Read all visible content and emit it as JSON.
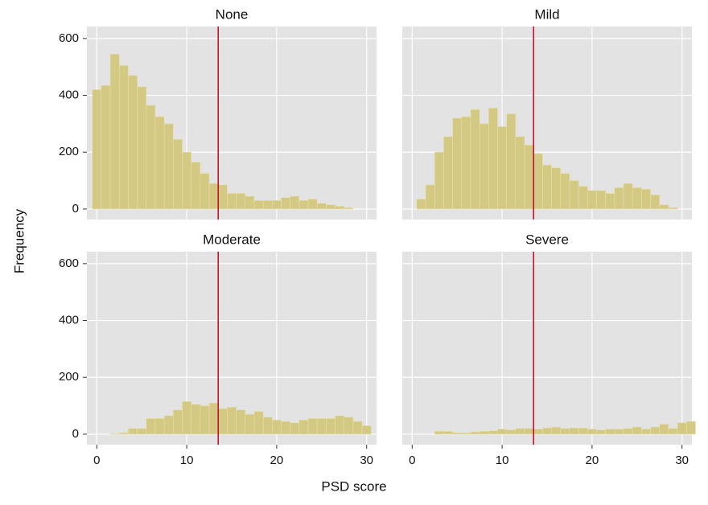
{
  "chart_data": [
    {
      "type": "histogram",
      "title": "None",
      "bins": [
        -0.5,
        0.5,
        1.5,
        2.5,
        3.5,
        4.5,
        5.5,
        6.5,
        7.5,
        8.5,
        9.5,
        10.5,
        11.5,
        12.5,
        13.5,
        14.5,
        15.5,
        16.5,
        17.5,
        18.5,
        19.5,
        20.5,
        21.5,
        22.5,
        23.5,
        24.5,
        25.5,
        26.5,
        27.5,
        28.5
      ],
      "counts": [
        420,
        435,
        545,
        505,
        470,
        430,
        365,
        325,
        300,
        245,
        200,
        165,
        125,
        90,
        85,
        55,
        55,
        45,
        30,
        30,
        30,
        40,
        45,
        30,
        35,
        20,
        15,
        10,
        5
      ]
    },
    {
      "type": "histogram",
      "title": "Mild",
      "bins": [
        0.5,
        1.5,
        2.5,
        3.5,
        4.5,
        5.5,
        6.5,
        7.5,
        8.5,
        9.5,
        10.5,
        11.5,
        12.5,
        13.5,
        14.5,
        15.5,
        16.5,
        17.5,
        18.5,
        19.5,
        20.5,
        21.5,
        22.5,
        23.5,
        24.5,
        25.5,
        26.5,
        27.5,
        28.5,
        29.5
      ],
      "counts": [
        35,
        85,
        200,
        255,
        320,
        325,
        350,
        300,
        355,
        290,
        335,
        255,
        225,
        195,
        155,
        145,
        125,
        100,
        80,
        65,
        65,
        55,
        75,
        90,
        75,
        70,
        50,
        15,
        5
      ]
    },
    {
      "type": "histogram",
      "title": "Moderate",
      "bins": [
        1.5,
        2.5,
        3.5,
        4.5,
        5.5,
        6.5,
        7.5,
        8.5,
        9.5,
        10.5,
        11.5,
        12.5,
        13.5,
        14.5,
        15.5,
        16.5,
        17.5,
        18.5,
        19.5,
        20.5,
        21.5,
        22.5,
        23.5,
        24.5,
        25.5,
        26.5,
        27.5,
        28.5,
        29.5,
        30.5
      ],
      "counts": [
        2,
        5,
        20,
        20,
        55,
        55,
        65,
        85,
        115,
        105,
        100,
        110,
        90,
        95,
        85,
        70,
        80,
        60,
        50,
        45,
        40,
        50,
        55,
        55,
        55,
        65,
        60,
        45,
        30
      ]
    },
    {
      "type": "histogram",
      "title": "Severe",
      "bins": [
        2.5,
        3.5,
        4.5,
        5.5,
        6.5,
        7.5,
        8.5,
        9.5,
        10.5,
        11.5,
        12.5,
        13.5,
        14.5,
        15.5,
        16.5,
        17.5,
        18.5,
        19.5,
        20.5,
        21.5,
        22.5,
        23.5,
        24.5,
        25.5,
        26.5,
        27.5,
        28.5,
        29.5,
        30.5,
        31.5
      ],
      "counts": [
        10,
        10,
        5,
        5,
        8,
        10,
        12,
        18,
        15,
        20,
        20,
        18,
        22,
        25,
        20,
        22,
        22,
        18,
        15,
        18,
        18,
        20,
        25,
        18,
        25,
        35,
        20,
        40,
        45
      ]
    }
  ],
  "shared": {
    "xlabel": "PSD score",
    "ylabel": "Frequency",
    "xlim": [
      -1.1,
      31.1
    ],
    "ylim": [
      -37,
      642
    ],
    "xticks": [
      0,
      10,
      20,
      30
    ],
    "yticks": [
      0,
      200,
      400,
      600
    ],
    "grid": true,
    "color": "#d3c983",
    "vline": 13.5,
    "vline_color": "#c0142a"
  }
}
